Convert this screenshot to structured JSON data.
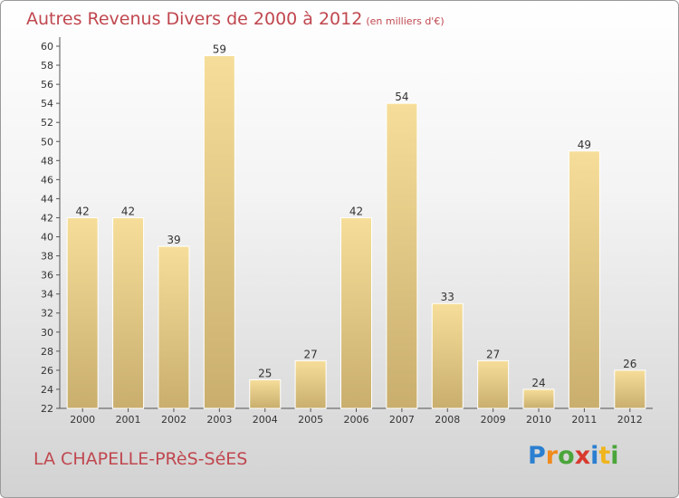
{
  "title": "Autres Revenus Divers de 2000 à 2012",
  "subtitle": "(en milliers d'€)",
  "place": "LA CHAPELLE-PRèS-SéES",
  "logo": {
    "letters": [
      "P",
      "r",
      "o",
      "x",
      "i",
      "t",
      "i"
    ],
    "colors": [
      "#2b7fd0",
      "#f08a1c",
      "#4aa53a",
      "#d8392e",
      "#2b7fd0",
      "#f0b51c",
      "#4aa53a"
    ]
  },
  "colors": {
    "title": "#c0474f",
    "bar_light": "#f6de9a",
    "bar_dark": "#c9ae6d",
    "axis": "#555555"
  },
  "chart_data": {
    "type": "bar",
    "categories": [
      "2000",
      "2001",
      "2002",
      "2003",
      "2004",
      "2005",
      "2006",
      "2007",
      "2008",
      "2009",
      "2010",
      "2011",
      "2012"
    ],
    "values": [
      42,
      42,
      39,
      59,
      25,
      27,
      42,
      54,
      33,
      27,
      24,
      49,
      26
    ],
    "data_labels": [
      "42",
      "42",
      "39",
      "59",
      "25",
      "27",
      "42",
      "54",
      "33",
      "27",
      "24",
      "49",
      "26"
    ],
    "y_ticks": [
      22,
      24,
      26,
      28,
      30,
      32,
      34,
      36,
      38,
      40,
      42,
      44,
      46,
      48,
      50,
      52,
      54,
      56,
      58,
      60
    ],
    "ylim": [
      22,
      60
    ],
    "grid": false,
    "legend": false
  }
}
